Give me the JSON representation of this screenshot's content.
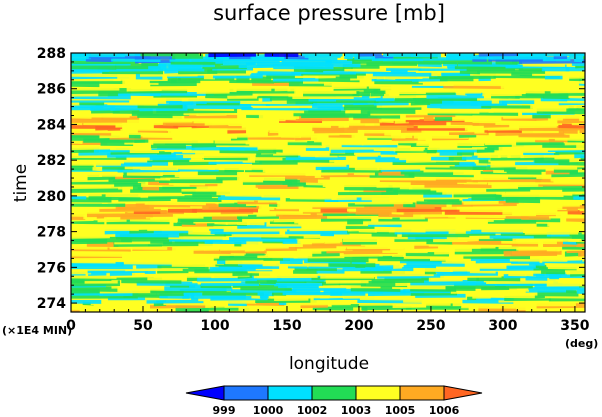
{
  "chart_data": {
    "type": "heatmap",
    "title": "surface pressure [mb]",
    "xlabel": "longitude",
    "ylabel": "time",
    "x_unit": "(deg)",
    "y_unit": "(×1E4 MIN)",
    "xlim": [
      0,
      357
    ],
    "ylim": [
      273.5,
      288
    ],
    "x_ticks": [
      0,
      50,
      100,
      150,
      200,
      250,
      300,
      350
    ],
    "y_ticks": [
      274,
      276,
      278,
      280,
      282,
      284,
      286,
      288
    ],
    "colorbar": {
      "levels": [
        999,
        1000,
        1002,
        1003,
        1005,
        1006
      ],
      "colors": [
        "#0000ff",
        "#1e78ff",
        "#00e0ff",
        "#22dd55",
        "#ffff22",
        "#ffaa22",
        "#ff6622"
      ],
      "extend": "both"
    },
    "bands": [
      {
        "time": 287.8,
        "pressure": 1000.5
      },
      {
        "time": 286.9,
        "pressure": 1002.5
      },
      {
        "time": 286.0,
        "pressure": 1003.8
      },
      {
        "time": 285.1,
        "pressure": 1001.8
      },
      {
        "time": 284.1,
        "pressure": 1005.2
      },
      {
        "time": 283.3,
        "pressure": 1004.0
      },
      {
        "time": 282.5,
        "pressure": 1002.6
      },
      {
        "time": 281.6,
        "pressure": 1003.2
      },
      {
        "time": 280.8,
        "pressure": 1004.3
      },
      {
        "time": 280.0,
        "pressure": 1003.0
      },
      {
        "time": 279.2,
        "pressure": 1005.0
      },
      {
        "time": 278.5,
        "pressure": 1003.6
      },
      {
        "time": 277.8,
        "pressure": 1002.6
      },
      {
        "time": 277.0,
        "pressure": 1004.6
      },
      {
        "time": 276.2,
        "pressure": 1002.2
      },
      {
        "time": 275.4,
        "pressure": 1003.0
      },
      {
        "time": 274.6,
        "pressure": 1001.6
      },
      {
        "time": 273.9,
        "pressure": 1003.6
      }
    ]
  }
}
